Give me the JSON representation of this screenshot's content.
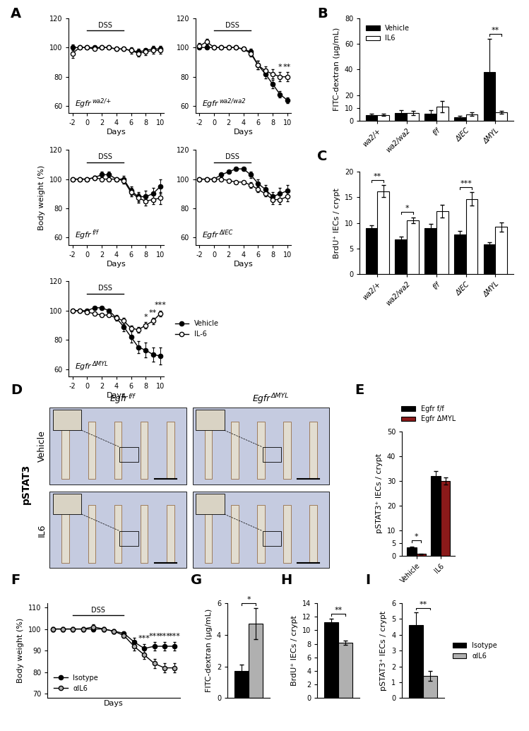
{
  "chart_data": [
    {
      "panel": "A",
      "type": "line",
      "title": "Egfr wa2/+",
      "xlabel": "Days",
      "x": [
        -2,
        -1,
        0,
        1,
        2,
        3,
        4,
        5,
        6,
        7,
        8,
        9,
        10
      ],
      "xlim": [
        -2.5,
        10.5
      ],
      "xticks": [
        -2,
        0,
        2,
        4,
        6,
        8,
        10
      ],
      "ylim": [
        55,
        120
      ],
      "yticks": [
        60,
        80,
        100,
        120
      ],
      "series": [
        {
          "name": "Vehicle",
          "color": "#000000",
          "marker": "o",
          "values": [
            100,
            100,
            100,
            100,
            100,
            100,
            99,
            99,
            98,
            97,
            98,
            99,
            99
          ],
          "errors": [
            2,
            1,
            1,
            1,
            1,
            1,
            1,
            1,
            1,
            2,
            1,
            2,
            2
          ]
        },
        {
          "name": "IL-6",
          "color": "#ffffff",
          "marker": "o",
          "values": [
            96,
            100,
            100,
            99,
            100,
            100,
            99,
            99,
            98,
            96,
            97,
            98,
            98
          ],
          "errors": [
            3,
            1,
            1,
            1,
            1,
            1,
            1,
            1,
            2,
            2,
            2,
            2,
            2
          ]
        }
      ],
      "annotations": [
        {
          "text": "DSS",
          "x": [
            0,
            5
          ]
        }
      ]
    },
    {
      "type": "line",
      "title": "Egfr wa2/wa2",
      "xlabel": "Days",
      "x": [
        -2,
        -1,
        0,
        1,
        2,
        3,
        4,
        5,
        6,
        7,
        8,
        9,
        10
      ],
      "xlim": [
        -2.5,
        10.5
      ],
      "xticks": [
        -2,
        0,
        2,
        4,
        6,
        8,
        10
      ],
      "ylim": [
        55,
        120
      ],
      "yticks": [
        60,
        80,
        100,
        120
      ],
      "series": [
        {
          "name": "Vehicle",
          "color": "#000000",
          "marker": "o",
          "values": [
            100,
            100,
            100,
            100,
            100,
            100,
            99,
            97,
            88,
            82,
            75,
            68,
            64
          ],
          "errors": [
            1,
            1,
            1,
            1,
            1,
            1,
            1,
            2,
            3,
            3,
            3,
            2,
            2
          ]
        },
        {
          "name": "IL-6",
          "color": "#ffffff",
          "marker": "o",
          "values": [
            101,
            104,
            100,
            100,
            100,
            100,
            99,
            96,
            88,
            84,
            82,
            80,
            80
          ],
          "errors": [
            2,
            2,
            1,
            1,
            1,
            1,
            1,
            2,
            3,
            3,
            3,
            3,
            3
          ]
        }
      ],
      "annotations": [
        {
          "text": "DSS",
          "x": [
            0,
            5
          ]
        },
        {
          "text": "*",
          "x": 9
        },
        {
          "text": "**",
          "x": 10
        }
      ]
    },
    {
      "type": "line",
      "title": "Egfr f/f",
      "xlabel": "Days",
      "ylabel": "Body weight (%)",
      "x": [
        -2,
        -1,
        0,
        1,
        2,
        3,
        4,
        5,
        6,
        7,
        8,
        9,
        10
      ],
      "xlim": [
        -2.5,
        10.5
      ],
      "xticks": [
        -2,
        0,
        2,
        4,
        6,
        8,
        10
      ],
      "ylim": [
        55,
        120
      ],
      "yticks": [
        60,
        80,
        100,
        120
      ],
      "series": [
        {
          "name": "Vehicle",
          "color": "#000000",
          "marker": "o",
          "values": [
            100,
            100,
            100,
            101,
            103,
            103,
            100,
            100,
            92,
            88,
            88,
            90,
            95
          ],
          "errors": [
            1,
            1,
            1,
            1,
            2,
            2,
            1,
            2,
            3,
            3,
            4,
            4,
            5
          ]
        },
        {
          "name": "IL-6",
          "color": "#ffffff",
          "marker": "o",
          "values": [
            100,
            100,
            100,
            101,
            100,
            100,
            100,
            99,
            91,
            87,
            85,
            86,
            87
          ],
          "errors": [
            1,
            1,
            1,
            1,
            1,
            1,
            1,
            2,
            3,
            3,
            3,
            3,
            4
          ]
        }
      ],
      "annotations": [
        {
          "text": "DSS",
          "x": [
            0,
            5
          ]
        }
      ]
    },
    {
      "type": "line",
      "title": "Egfr ΔIEC",
      "xlabel": "Days",
      "x": [
        -2,
        -1,
        0,
        1,
        2,
        3,
        4,
        5,
        6,
        7,
        8,
        9,
        10
      ],
      "xlim": [
        -2.5,
        10.5
      ],
      "xticks": [
        -2,
        0,
        2,
        4,
        6,
        8,
        10
      ],
      "ylim": [
        55,
        120
      ],
      "yticks": [
        60,
        80,
        100,
        120
      ],
      "series": [
        {
          "name": "Vehicle",
          "color": "#000000",
          "marker": "o",
          "values": [
            100,
            100,
            100,
            103,
            105,
            107,
            107,
            103,
            97,
            93,
            88,
            90,
            92
          ],
          "errors": [
            1,
            1,
            1,
            1,
            1,
            1,
            1,
            2,
            3,
            3,
            3,
            4,
            4
          ]
        },
        {
          "name": "IL-6",
          "color": "#ffffff",
          "marker": "o",
          "values": [
            100,
            100,
            100,
            100,
            99,
            98,
            98,
            96,
            93,
            90,
            86,
            86,
            88
          ],
          "errors": [
            1,
            1,
            1,
            1,
            1,
            1,
            1,
            2,
            2,
            2,
            3,
            3,
            3
          ]
        }
      ],
      "annotations": [
        {
          "text": "DSS",
          "x": [
            0,
            5
          ]
        }
      ]
    },
    {
      "type": "line",
      "title": "Egfr ΔMYL",
      "xlabel": "Days",
      "legend": "right",
      "x": [
        -2,
        -1,
        0,
        1,
        2,
        3,
        4,
        5,
        6,
        7,
        8,
        9,
        10
      ],
      "xlim": [
        -2.5,
        10.5
      ],
      "xticks": [
        -2,
        0,
        2,
        4,
        6,
        8,
        10
      ],
      "ylim": [
        55,
        120
      ],
      "yticks": [
        60,
        80,
        100,
        120
      ],
      "series": [
        {
          "name": "Vehicle",
          "color": "#000000",
          "marker": "o",
          "values": [
            100,
            100,
            100,
            102,
            102,
            100,
            95,
            89,
            82,
            75,
            73,
            70,
            69
          ],
          "errors": [
            1,
            1,
            1,
            1,
            1,
            1,
            2,
            3,
            4,
            4,
            5,
            5,
            6
          ]
        },
        {
          "name": "IL-6",
          "color": "#ffffff",
          "marker": "o",
          "values": [
            100,
            100,
            99,
            98,
            97,
            97,
            95,
            93,
            88,
            87,
            90,
            93,
            98
          ],
          "errors": [
            1,
            1,
            1,
            1,
            1,
            1,
            1,
            2,
            2,
            2,
            2,
            2,
            2
          ]
        }
      ],
      "annotations": [
        {
          "text": "DSS",
          "x": [
            0,
            5
          ]
        },
        {
          "text": "*",
          "x": 8
        },
        {
          "text": "**",
          "x": 9
        },
        {
          "text": "***",
          "x": 10
        }
      ]
    },
    {
      "panel": "B",
      "type": "bar",
      "ylabel": "FITC-dextran (μg/mL)",
      "legend": "upper left",
      "categories": [
        "wa2/+",
        "wa2/wa2",
        "f/f",
        "ΔIEC",
        "ΔMYL"
      ],
      "ylim": [
        0,
        80
      ],
      "yticks": [
        0,
        10,
        20,
        40,
        60,
        80
      ],
      "series": [
        {
          "name": "Vehicle",
          "color": "#000000",
          "values": [
            4.5,
            6,
            5.5,
            2.5,
            38
          ],
          "errors": [
            1,
            2,
            2.5,
            1,
            26
          ]
        },
        {
          "name": "IL6",
          "color": "#ffffff",
          "values": [
            4.5,
            6,
            11,
            5,
            6.5
          ],
          "errors": [
            1,
            1.5,
            4.5,
            1.5,
            1
          ]
        }
      ],
      "annotations": [
        {
          "category": "ΔMYL",
          "text": "**"
        }
      ]
    },
    {
      "panel": "C",
      "type": "bar",
      "ylabel": "BrdU⁺ IECs / crypt",
      "categories": [
        "wa2/+",
        "wa2/wa2",
        "f/f",
        "ΔIEC",
        "ΔMYL"
      ],
      "ylim": [
        0,
        20
      ],
      "yticks": [
        0,
        5,
        10,
        15,
        20
      ],
      "series": [
        {
          "name": "Vehicle",
          "color": "#000000",
          "values": [
            9,
            6.8,
            9,
            7.8,
            5.8
          ],
          "errors": [
            0.5,
            0.6,
            0.8,
            0.7,
            0.4
          ]
        },
        {
          "name": "IL6",
          "color": "#ffffff",
          "values": [
            16.2,
            10.5,
            12.3,
            14.7,
            9.2
          ],
          "errors": [
            1.2,
            0.6,
            1.2,
            1.3,
            0.9
          ]
        }
      ],
      "annotations": [
        {
          "category": "wa2/+",
          "text": "**"
        },
        {
          "category": "wa2/wa2",
          "text": "*"
        },
        {
          "category": "ΔIEC",
          "text": "***"
        }
      ]
    },
    {
      "panel": "E",
      "type": "bar",
      "ylabel": "pSTAT3⁺ IECs / crypt",
      "legend": "top",
      "categories": [
        "Vehicle",
        "IL6"
      ],
      "ylim": [
        0,
        50
      ],
      "yticks": [
        0,
        5,
        10,
        20,
        30,
        40,
        50
      ],
      "series": [
        {
          "name": "Egfr f/f",
          "color": "#000000",
          "values": [
            3.4,
            32
          ],
          "errors": [
            0.3,
            2
          ]
        },
        {
          "name": "Egfr ΔMYL",
          "color": "#8b1a1a",
          "values": [
            0.7,
            30
          ],
          "errors": [
            0.15,
            1.5
          ]
        }
      ],
      "annotations": [
        {
          "category": "Vehicle",
          "text": "*"
        }
      ]
    },
    {
      "panel": "F",
      "type": "line",
      "xlabel": "Days",
      "ylabel": "Body weight (%)",
      "legend": "lower left",
      "tick_labels": "y",
      "x": [
        -2,
        -1,
        0,
        1,
        2,
        3,
        4,
        5,
        6,
        7,
        8,
        9,
        10
      ],
      "xlim": [
        -2.5,
        10.5
      ],
      "ylim": [
        68,
        112
      ],
      "yticks": [
        70,
        80,
        90,
        100,
        110
      ],
      "series": [
        {
          "name": "Isotype",
          "color": "#000000",
          "marker": "o",
          "values": [
            100,
            100,
            100,
            100,
            100,
            100,
            99,
            98,
            94,
            91,
            92,
            92,
            92
          ],
          "errors": [
            1,
            1,
            1,
            1,
            1,
            1,
            1,
            1,
            2,
            2,
            2,
            2,
            2
          ]
        },
        {
          "name": "αIL6",
          "color": "#b0b0b0",
          "marker": "o",
          "values": [
            100,
            100,
            100,
            100,
            101,
            100,
            99,
            97,
            92,
            88,
            84,
            82,
            82
          ],
          "errors": [
            1,
            1,
            1,
            1,
            1,
            1,
            1,
            1,
            2,
            2,
            2,
            2,
            2
          ]
        }
      ],
      "annotations": [
        {
          "text": "DSS",
          "x": [
            0,
            5
          ]
        },
        {
          "text": "***",
          "x": 7
        },
        {
          "text": "***",
          "x": 8
        },
        {
          "text": "***",
          "x": 9
        },
        {
          "text": "***",
          "x": 10
        }
      ]
    },
    {
      "panel": "G",
      "type": "bar",
      "ylabel": "FITC-dextran (μg/mL)",
      "tick_labels": "y",
      "categories": [
        null
      ],
      "ylim": [
        0,
        6
      ],
      "yticks": [
        0,
        2,
        4,
        6
      ],
      "series": [
        {
          "name": "Isotype",
          "color": "#000000",
          "values": [
            1.7
          ],
          "errors": [
            0.4
          ]
        },
        {
          "name": "αIL6",
          "color": "#b0b0b0",
          "values": [
            4.7
          ],
          "errors": [
            1.0
          ]
        }
      ],
      "annotations": [
        {
          "text": "*"
        }
      ]
    },
    {
      "panel": "H",
      "type": "bar",
      "ylabel": "BrdU⁺ IECs / crypt",
      "tick_labels": "y",
      "categories": [
        null
      ],
      "ylim": [
        0,
        14
      ],
      "yticks": [
        0,
        2,
        4,
        6,
        8,
        10,
        12,
        14
      ],
      "series": [
        {
          "name": "Isotype",
          "color": "#000000",
          "values": [
            11.2
          ],
          "errors": [
            0.5
          ]
        },
        {
          "name": "αIL6",
          "color": "#b0b0b0",
          "values": [
            8.2
          ],
          "errors": [
            0.3
          ]
        }
      ],
      "annotations": [
        {
          "text": "**"
        }
      ]
    },
    {
      "panel": "I",
      "type": "bar",
      "ylabel": "pSTAT3⁺ IECs / crypt",
      "tick_labels": "y",
      "legend": "right",
      "categories": [
        null
      ],
      "ylim": [
        0,
        6
      ],
      "yticks": [
        0,
        1,
        2,
        3,
        4,
        5,
        6
      ],
      "series": [
        {
          "name": "Isotype",
          "color": "#000000",
          "values": [
            4.6
          ],
          "errors": [
            0.8
          ]
        },
        {
          "name": "αIL6",
          "color": "#b0b0b0",
          "values": [
            1.4
          ],
          "errors": [
            0.3
          ]
        }
      ],
      "annotations": [
        {
          "text": "**"
        }
      ]
    }
  ],
  "image_panel": {
    "panel": "D",
    "stain": "pSTAT3",
    "columns": [
      "Egfr f/f",
      "Egfr ΔMYL"
    ],
    "rows": [
      "Vehicle",
      "IL6"
    ]
  }
}
